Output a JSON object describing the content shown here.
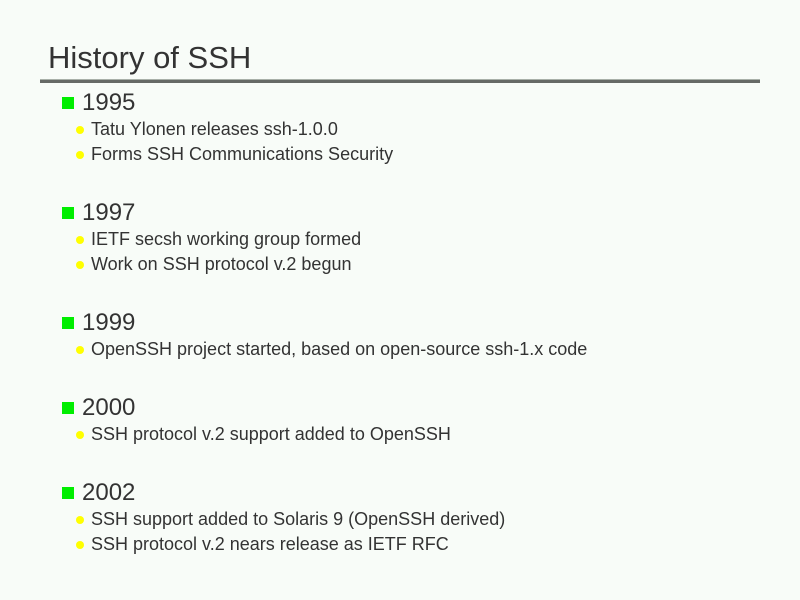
{
  "title": "History of SSH",
  "colors": {
    "bullet_level1": "#00ee00",
    "bullet_level2": "#ffff00",
    "background": "#f8fcf8"
  },
  "groups": [
    {
      "year": "1995",
      "items": [
        "Tatu Ylonen releases ssh-1.0.0",
        "Forms SSH Communications Security"
      ]
    },
    {
      "year": "1997",
      "items": [
        "IETF secsh working group formed",
        "Work on SSH protocol v.2 begun"
      ]
    },
    {
      "year": "1999",
      "items": [
        "OpenSSH project started, based on open-source ssh-1.x code"
      ]
    },
    {
      "year": "2000",
      "items": [
        "SSH protocol v.2 support added to OpenSSH"
      ]
    },
    {
      "year": "2002",
      "items": [
        "SSH support added to Solaris 9 (OpenSSH derived)",
        "SSH protocol v.2 nears release as IETF RFC"
      ]
    }
  ]
}
